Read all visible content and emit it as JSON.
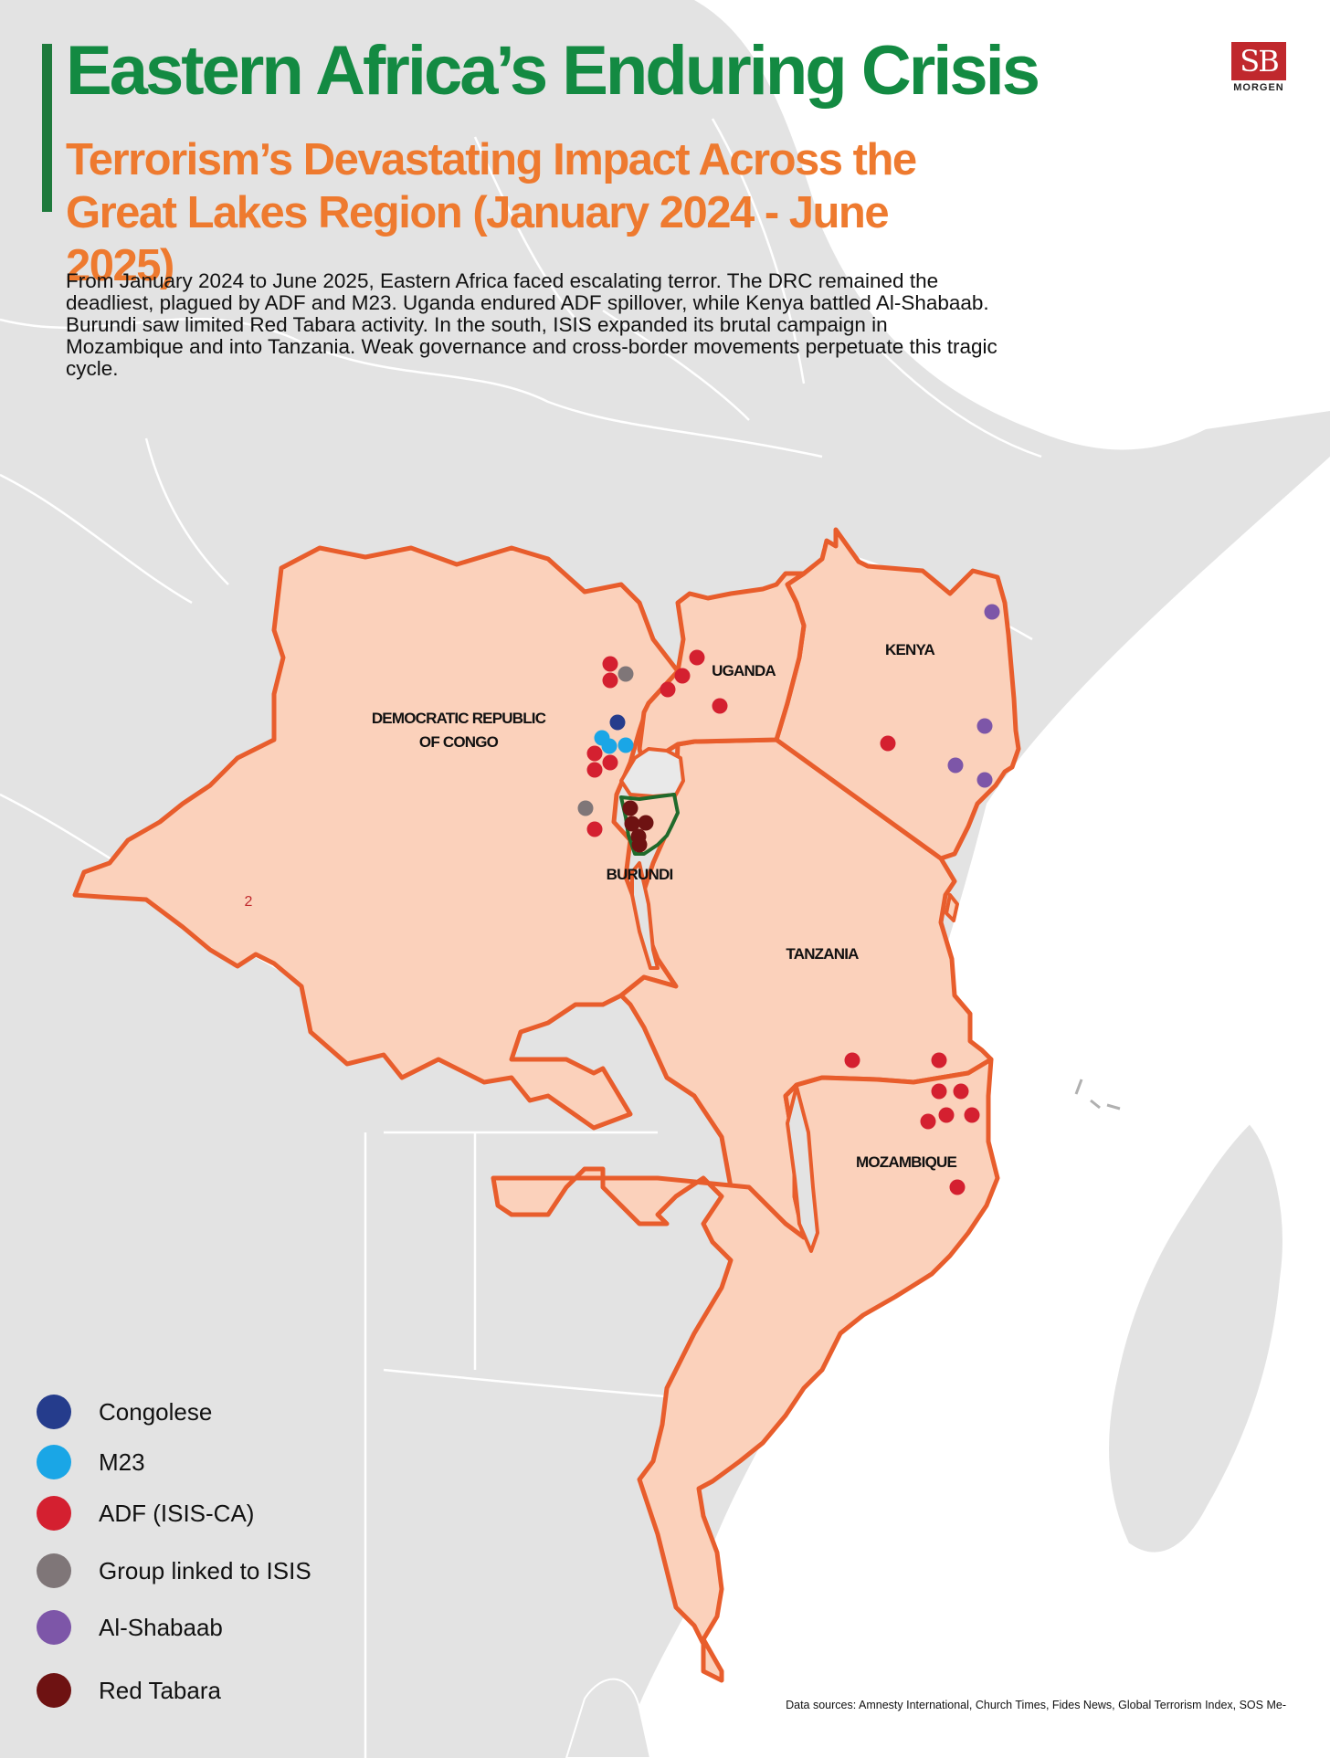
{
  "header": {
    "title": "Eastern Africa’s Enduring Crisis",
    "subtitle": "Terrorism’s Devastating Impact Across the Great Lakes Region (January 2024 - June 2025)",
    "intro": "From January 2024 to June 2025, Eastern Africa faced escalating terror. The DRC remained the deadliest, plagued by ADF and M23. Uganda endured ADF spillover, while Kenya battled Al-Shabaab. Burundi saw limited Red Tabara activity. In the south, ISIS expanded its brutal campaign in Mozambique and into Tanzania. Weak governance and cross-border movements perpetuate this tragic cycle."
  },
  "logo": {
    "mark": "SB",
    "text": "MORGEN"
  },
  "colors": {
    "title": "#138a42",
    "subtitle": "#ee7a2f",
    "accent_bar": "#1e7a3c",
    "highlight_fill": "#fbd1bb",
    "highlight_border": "#e85d2c",
    "background_land": "#e3e3e3",
    "rwanda_fill": "#e9e9e9",
    "burundi_border": "#1f6a2b"
  },
  "countries": {
    "drc_line1": "DEMOCRATIC REPUBLIC",
    "drc_line2": "OF CONGO",
    "uganda": "UGANDA",
    "kenya": "KENYA",
    "burundi": "BURUNDI",
    "tanzania": "TANZANIA",
    "mozambique": "MOZAMBIQUE"
  },
  "map_marker_text": "2",
  "groups": [
    {
      "id": "congolese",
      "label": "Congolese",
      "color": "#253c8c"
    },
    {
      "id": "m23",
      "label": "M23",
      "color": "#1aa6e6"
    },
    {
      "id": "adf",
      "label": "ADF (ISIS-CA)",
      "color": "#d42030"
    },
    {
      "id": "isis_linked",
      "label": "Group linked to ISIS",
      "color": "#7f7678"
    },
    {
      "id": "al_shabaab",
      "label": "Al-Shabaab",
      "color": "#7d56a8"
    },
    {
      "id": "red_tabara",
      "label": "Red Tabara",
      "color": "#6e1212"
    }
  ],
  "incidents": {
    "adf": [
      {
        "country": "DRC"
      },
      {
        "country": "DRC"
      },
      {
        "country": "DRC"
      },
      {
        "country": "DRC"
      },
      {
        "country": "DRC"
      },
      {
        "country": "DRC"
      },
      {
        "country": "Uganda"
      },
      {
        "country": "Uganda"
      },
      {
        "country": "Uganda"
      },
      {
        "country": "Uganda"
      },
      {
        "country": "Kenya"
      },
      {
        "country": "Tanzania"
      },
      {
        "country": "Tanzania"
      },
      {
        "country": "Mozambique"
      },
      {
        "country": "Mozambique"
      },
      {
        "country": "Mozambique"
      },
      {
        "country": "Mozambique"
      },
      {
        "country": "Mozambique"
      },
      {
        "country": "Mozambique"
      },
      {
        "country": "Mozambique"
      }
    ],
    "congolese": [
      {
        "country": "DRC"
      }
    ],
    "m23": [
      {
        "country": "DRC"
      },
      {
        "country": "DRC"
      },
      {
        "country": "DRC"
      }
    ],
    "isis_linked": [
      {
        "country": "DRC"
      },
      {
        "country": "DRC"
      }
    ],
    "al_shabaab": [
      {
        "country": "Kenya"
      },
      {
        "country": "Kenya"
      },
      {
        "country": "Kenya"
      },
      {
        "country": "Kenya"
      }
    ],
    "red_tabara": [
      {
        "country": "Burundi"
      },
      {
        "country": "Burundi"
      },
      {
        "country": "Burundi"
      },
      {
        "country": "Burundi"
      },
      {
        "country": "Burundi"
      }
    ]
  },
  "sources": "Data sources: Amnesty International, Church Times, Fides News, Global Terrorism Index, SOS Me-"
}
